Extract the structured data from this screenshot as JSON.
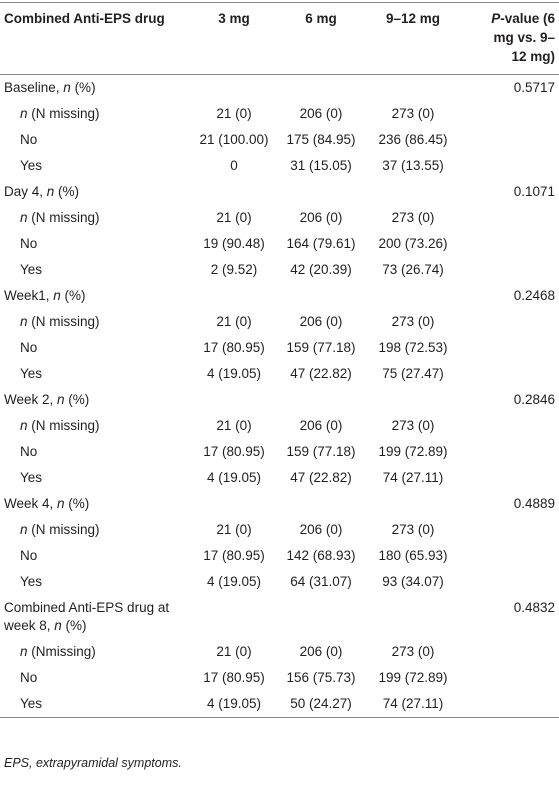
{
  "table": {
    "header": [
      [
        {
          "text": "Combined Anti-EPS drug"
        }
      ],
      [
        {
          "text": "3 mg"
        }
      ],
      [
        {
          "text": "6 mg"
        }
      ],
      [
        {
          "text": "9–12 mg"
        }
      ],
      [
        {
          "text": "P",
          "italic": true
        },
        {
          "text": "-value (6 mg vs. 9–12 mg)"
        }
      ]
    ],
    "sections": [
      {
        "label": [
          {
            "text": "Baseline, "
          },
          {
            "text": "n",
            "italic": true
          },
          {
            "text": " (%)"
          }
        ],
        "p_value": "0.5717",
        "rows": [
          {
            "label": [
              {
                "text": "n",
                "italic": true
              },
              {
                "text": " (N missing)"
              }
            ],
            "cells": [
              "21 (0)",
              "206 (0)",
              "273 (0)"
            ]
          },
          {
            "label": [
              {
                "text": "No"
              }
            ],
            "cells": [
              "21 (100.00)",
              "175 (84.95)",
              "236 (86.45)"
            ]
          },
          {
            "label": [
              {
                "text": "Yes"
              }
            ],
            "cells": [
              "0",
              "31 (15.05)",
              "37 (13.55)"
            ]
          }
        ]
      },
      {
        "label": [
          {
            "text": "Day 4, "
          },
          {
            "text": "n",
            "italic": true
          },
          {
            "text": " (%)"
          }
        ],
        "p_value": "0.1071",
        "rows": [
          {
            "label": [
              {
                "text": "n",
                "italic": true
              },
              {
                "text": " (N missing)"
              }
            ],
            "cells": [
              "21 (0)",
              "206 (0)",
              "273 (0)"
            ]
          },
          {
            "label": [
              {
                "text": "No"
              }
            ],
            "cells": [
              "19 (90.48)",
              "164 (79.61)",
              "200 (73.26)"
            ]
          },
          {
            "label": [
              {
                "text": "Yes"
              }
            ],
            "cells": [
              "2 (9.52)",
              "42 (20.39)",
              "73 (26.74)"
            ]
          }
        ]
      },
      {
        "label": [
          {
            "text": "Week1, "
          },
          {
            "text": "n",
            "italic": true
          },
          {
            "text": " (%)"
          }
        ],
        "p_value": "0.2468",
        "rows": [
          {
            "label": [
              {
                "text": "n",
                "italic": true
              },
              {
                "text": " (N missing)"
              }
            ],
            "cells": [
              "21 (0)",
              "206 (0)",
              "273 (0)"
            ]
          },
          {
            "label": [
              {
                "text": "No"
              }
            ],
            "cells": [
              "17 (80.95)",
              "159 (77.18)",
              "198 (72.53)"
            ]
          },
          {
            "label": [
              {
                "text": "Yes"
              }
            ],
            "cells": [
              "4 (19.05)",
              "47 (22.82)",
              "75 (27.47)"
            ]
          }
        ]
      },
      {
        "label": [
          {
            "text": "Week 2, "
          },
          {
            "text": "n",
            "italic": true
          },
          {
            "text": " (%)"
          }
        ],
        "p_value": "0.2846",
        "rows": [
          {
            "label": [
              {
                "text": "n",
                "italic": true
              },
              {
                "text": " (N missing)"
              }
            ],
            "cells": [
              "21 (0)",
              "206 (0)",
              "273 (0)"
            ]
          },
          {
            "label": [
              {
                "text": "No"
              }
            ],
            "cells": [
              "17 (80.95)",
              "159 (77.18)",
              "199 (72.89)"
            ]
          },
          {
            "label": [
              {
                "text": "Yes"
              }
            ],
            "cells": [
              "4 (19.05)",
              "47 (22.82)",
              "74 (27.11)"
            ]
          }
        ]
      },
      {
        "label": [
          {
            "text": "Week 4, "
          },
          {
            "text": "n",
            "italic": true
          },
          {
            "text": " (%)"
          }
        ],
        "p_value": "0.4889",
        "rows": [
          {
            "label": [
              {
                "text": "n",
                "italic": true
              },
              {
                "text": " (N missing)"
              }
            ],
            "cells": [
              "21 (0)",
              "206 (0)",
              "273 (0)"
            ]
          },
          {
            "label": [
              {
                "text": "No"
              }
            ],
            "cells": [
              "17 (80.95)",
              "142 (68.93)",
              "180 (65.93)"
            ]
          },
          {
            "label": [
              {
                "text": "Yes"
              }
            ],
            "cells": [
              "4 (19.05)",
              "64 (31.07)",
              "93 (34.07)"
            ]
          }
        ]
      },
      {
        "label": [
          {
            "text": "Combined Anti-EPS drug at week 8, "
          },
          {
            "text": "n",
            "italic": true
          },
          {
            "text": " (%)"
          }
        ],
        "p_value": "0.4832",
        "rows": [
          {
            "label": [
              {
                "text": "n",
                "italic": true
              },
              {
                "text": " (Nmissing)"
              }
            ],
            "cells": [
              "21 (0)",
              "206 (0)",
              "273 (0)"
            ]
          },
          {
            "label": [
              {
                "text": "No"
              }
            ],
            "cells": [
              "17 (80.95)",
              "156 (75.73)",
              "199 (72.89)"
            ]
          },
          {
            "label": [
              {
                "text": "Yes"
              }
            ],
            "cells": [
              "4 (19.05)",
              "50 (24.27)",
              "74 (27.11)"
            ]
          }
        ]
      }
    ]
  },
  "footnote": [
    {
      "text": "EPS, extrapyramidal symptoms."
    }
  ]
}
